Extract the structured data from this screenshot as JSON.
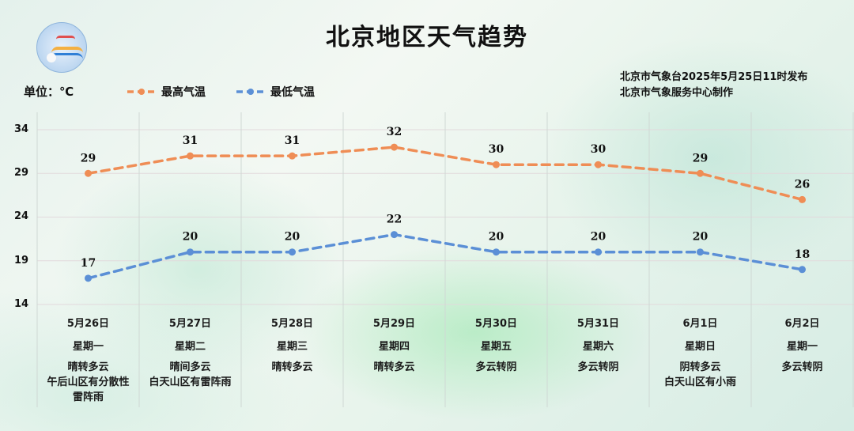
{
  "header": {
    "title": "北京地区天气趋势",
    "unit_label": "单位：℃",
    "publisher_line1": "北京市气象台2025年5月25日11时发布",
    "publisher_line2": "北京市气象服务中心制作"
  },
  "legend": {
    "high_label": "最高气温",
    "low_label": "最低气温"
  },
  "colors": {
    "high": "#ef8d55",
    "low": "#5b8fd6",
    "grid": "#cfd8d4"
  },
  "chart_data": {
    "type": "line",
    "title": "北京地区天气趋势",
    "ylabel": "单位：℃",
    "xlabel": "",
    "ylim": [
      14,
      34
    ],
    "yticks": [
      34,
      29,
      24,
      19,
      14
    ],
    "grid": true,
    "legend_position": "top",
    "categories": [
      "5月26日",
      "5月27日",
      "5月28日",
      "5月29日",
      "5月30日",
      "5月31日",
      "6月1日",
      "6月2日"
    ],
    "series": [
      {
        "name": "最高气温",
        "values": [
          29,
          31,
          31,
          32,
          30,
          30,
          29,
          26
        ]
      },
      {
        "name": "最低气温",
        "values": [
          17,
          20,
          20,
          22,
          20,
          20,
          20,
          18
        ]
      }
    ]
  },
  "yticks_labels": [
    "34",
    "29",
    "24",
    "19",
    "14"
  ],
  "days": [
    {
      "date": "5月26日",
      "weekday": "星期一",
      "weather": [
        "晴转多云",
        "午后山区有分散性",
        "雷阵雨"
      ],
      "high": "29",
      "low": "17"
    },
    {
      "date": "5月27日",
      "weekday": "星期二",
      "weather": [
        "晴间多云",
        "白天山区有雷阵雨"
      ],
      "high": "31",
      "low": "20"
    },
    {
      "date": "5月28日",
      "weekday": "星期三",
      "weather": [
        "晴转多云"
      ],
      "high": "31",
      "low": "20"
    },
    {
      "date": "5月29日",
      "weekday": "星期四",
      "weather": [
        "晴转多云"
      ],
      "high": "32",
      "low": "22"
    },
    {
      "date": "5月30日",
      "weekday": "星期五",
      "weather": [
        "多云转阴"
      ],
      "high": "30",
      "low": "20"
    },
    {
      "date": "5月31日",
      "weekday": "星期六",
      "weather": [
        "多云转阴"
      ],
      "high": "30",
      "low": "20"
    },
    {
      "date": "6月1日",
      "weekday": "星期日",
      "weather": [
        "阴转多云",
        "白天山区有小雨"
      ],
      "high": "29",
      "low": "20"
    },
    {
      "date": "6月2日",
      "weekday": "星期一",
      "weather": [
        "多云转阴"
      ],
      "high": "26",
      "low": "18"
    }
  ]
}
